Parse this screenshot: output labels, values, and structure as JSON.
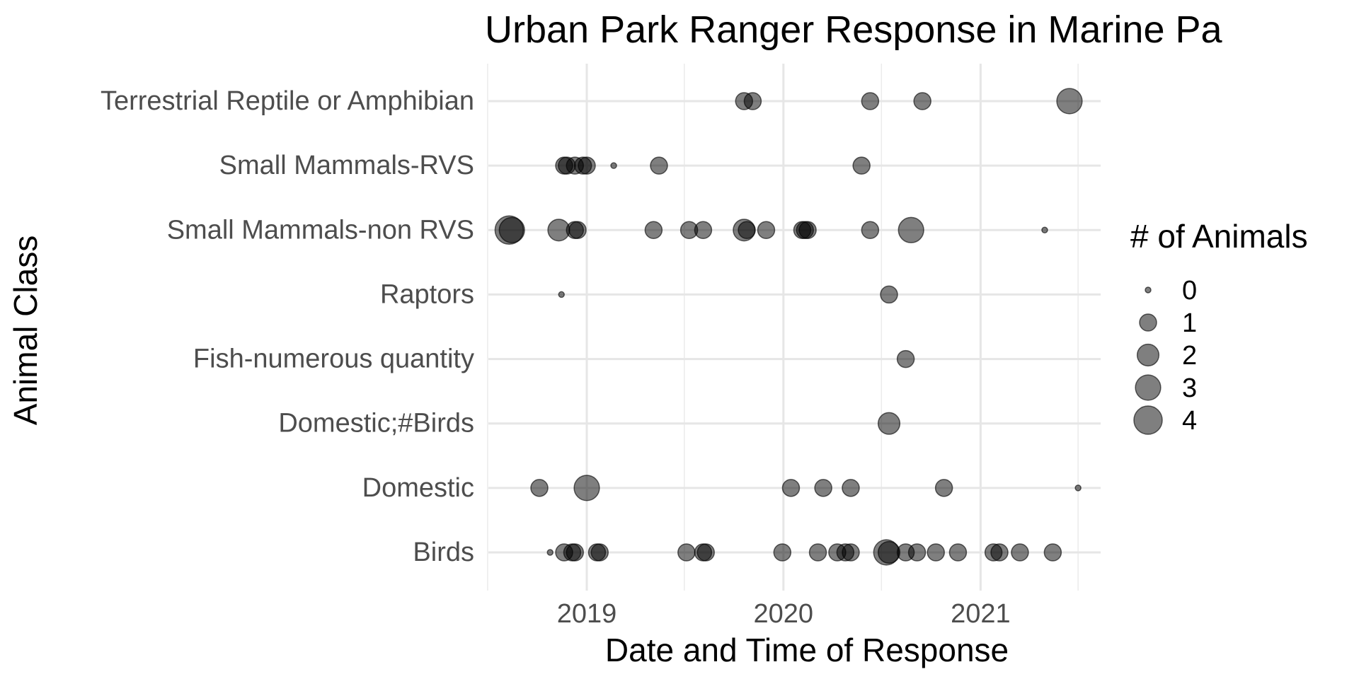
{
  "chart_data": {
    "type": "scatter",
    "title": "Urban Park Ranger Response in Marine Pa",
    "xlabel": "Date and Time of Response",
    "ylabel": "Animal Class",
    "x_ticks": [
      "2019",
      "2020",
      "2021"
    ],
    "xlim": [
      "2018-07-01",
      "2021-08-01"
    ],
    "categories": [
      "Birds",
      "Domestic",
      "Domestic;#Birds",
      "Fish-numerous quantity",
      "Raptors",
      "Small Mammals-non RVS",
      "Small Mammals-RVS",
      "Terrestrial Reptile or Amphibian"
    ],
    "legend": {
      "title": "# of Animals",
      "position": "right",
      "entries": [
        "0",
        "1",
        "2",
        "3",
        "4"
      ],
      "values": [
        0,
        1,
        2,
        3,
        4
      ]
    },
    "grid": true,
    "point_color": "#000000",
    "point_opacity": 0.5,
    "points": [
      {
        "date": "2019-10-20",
        "class": "Terrestrial Reptile or Amphibian",
        "count": 1
      },
      {
        "date": "2019-11-05",
        "class": "Terrestrial Reptile or Amphibian",
        "count": 1
      },
      {
        "date": "2020-06-10",
        "class": "Terrestrial Reptile or Amphibian",
        "count": 1
      },
      {
        "date": "2020-09-15",
        "class": "Terrestrial Reptile or Amphibian",
        "count": 1
      },
      {
        "date": "2021-06-15",
        "class": "Terrestrial Reptile or Amphibian",
        "count": 3
      },
      {
        "date": "2018-11-20",
        "class": "Small Mammals-RVS",
        "count": 1
      },
      {
        "date": "2018-11-25",
        "class": "Small Mammals-RVS",
        "count": 1
      },
      {
        "date": "2018-12-10",
        "class": "Small Mammals-RVS",
        "count": 1
      },
      {
        "date": "2018-12-25",
        "class": "Small Mammals-RVS",
        "count": 1
      },
      {
        "date": "2019-01-01",
        "class": "Small Mammals-RVS",
        "count": 1
      },
      {
        "date": "2019-02-20",
        "class": "Small Mammals-RVS",
        "count": 0
      },
      {
        "date": "2019-05-15",
        "class": "Small Mammals-RVS",
        "count": 1
      },
      {
        "date": "2020-05-25",
        "class": "Small Mammals-RVS",
        "count": 1
      },
      {
        "date": "2018-08-10",
        "class": "Small Mammals-non RVS",
        "count": 4
      },
      {
        "date": "2018-08-15",
        "class": "Small Mammals-non RVS",
        "count": 3
      },
      {
        "date": "2018-11-10",
        "class": "Small Mammals-non RVS",
        "count": 2
      },
      {
        "date": "2018-12-10",
        "class": "Small Mammals-non RVS",
        "count": 1
      },
      {
        "date": "2018-12-15",
        "class": "Small Mammals-non RVS",
        "count": 1
      },
      {
        "date": "2019-05-05",
        "class": "Small Mammals-non RVS",
        "count": 1
      },
      {
        "date": "2019-07-10",
        "class": "Small Mammals-non RVS",
        "count": 1
      },
      {
        "date": "2019-08-05",
        "class": "Small Mammals-non RVS",
        "count": 1
      },
      {
        "date": "2019-10-20",
        "class": "Small Mammals-non RVS",
        "count": 2
      },
      {
        "date": "2019-10-25",
        "class": "Small Mammals-non RVS",
        "count": 1
      },
      {
        "date": "2019-11-30",
        "class": "Small Mammals-non RVS",
        "count": 1
      },
      {
        "date": "2020-02-05",
        "class": "Small Mammals-non RVS",
        "count": 1
      },
      {
        "date": "2020-02-10",
        "class": "Small Mammals-non RVS",
        "count": 1
      },
      {
        "date": "2020-02-15",
        "class": "Small Mammals-non RVS",
        "count": 1
      },
      {
        "date": "2020-06-10",
        "class": "Small Mammals-non RVS",
        "count": 1
      },
      {
        "date": "2020-08-25",
        "class": "Small Mammals-non RVS",
        "count": 3
      },
      {
        "date": "2021-04-30",
        "class": "Small Mammals-non RVS",
        "count": 0
      },
      {
        "date": "2018-11-15",
        "class": "Raptors",
        "count": 0
      },
      {
        "date": "2020-07-15",
        "class": "Raptors",
        "count": 1
      },
      {
        "date": "2020-08-15",
        "class": "Fish-numerous quantity",
        "count": 1
      },
      {
        "date": "2020-07-15",
        "class": "Domestic;#Birds",
        "count": 2
      },
      {
        "date": "2018-10-05",
        "class": "Domestic",
        "count": 1
      },
      {
        "date": "2019-01-01",
        "class": "Domestic",
        "count": 3
      },
      {
        "date": "2020-01-15",
        "class": "Domestic",
        "count": 1
      },
      {
        "date": "2020-03-15",
        "class": "Domestic",
        "count": 1
      },
      {
        "date": "2020-05-05",
        "class": "Domestic",
        "count": 1
      },
      {
        "date": "2020-10-25",
        "class": "Domestic",
        "count": 1
      },
      {
        "date": "2021-07-01",
        "class": "Domestic",
        "count": 0
      },
      {
        "date": "2018-10-25",
        "class": "Birds",
        "count": 0
      },
      {
        "date": "2018-11-20",
        "class": "Birds",
        "count": 1
      },
      {
        "date": "2018-12-05",
        "class": "Birds",
        "count": 1
      },
      {
        "date": "2018-12-10",
        "class": "Birds",
        "count": 1
      },
      {
        "date": "2019-01-20",
        "class": "Birds",
        "count": 1
      },
      {
        "date": "2019-01-25",
        "class": "Birds",
        "count": 1
      },
      {
        "date": "2019-07-05",
        "class": "Birds",
        "count": 1
      },
      {
        "date": "2019-08-05",
        "class": "Birds",
        "count": 1
      },
      {
        "date": "2019-08-10",
        "class": "Birds",
        "count": 1
      },
      {
        "date": "2019-12-30",
        "class": "Birds",
        "count": 1
      },
      {
        "date": "2020-03-05",
        "class": "Birds",
        "count": 1
      },
      {
        "date": "2020-04-10",
        "class": "Birds",
        "count": 1
      },
      {
        "date": "2020-04-25",
        "class": "Birds",
        "count": 1
      },
      {
        "date": "2020-05-05",
        "class": "Birds",
        "count": 1
      },
      {
        "date": "2020-07-10",
        "class": "Birds",
        "count": 3
      },
      {
        "date": "2020-07-15",
        "class": "Birds",
        "count": 2
      },
      {
        "date": "2020-08-15",
        "class": "Birds",
        "count": 1
      },
      {
        "date": "2020-09-05",
        "class": "Birds",
        "count": 1
      },
      {
        "date": "2020-10-10",
        "class": "Birds",
        "count": 1
      },
      {
        "date": "2020-11-20",
        "class": "Birds",
        "count": 1
      },
      {
        "date": "2021-01-25",
        "class": "Birds",
        "count": 1
      },
      {
        "date": "2021-02-05",
        "class": "Birds",
        "count": 1
      },
      {
        "date": "2021-03-15",
        "class": "Birds",
        "count": 1
      },
      {
        "date": "2021-05-15",
        "class": "Birds",
        "count": 1
      }
    ]
  }
}
